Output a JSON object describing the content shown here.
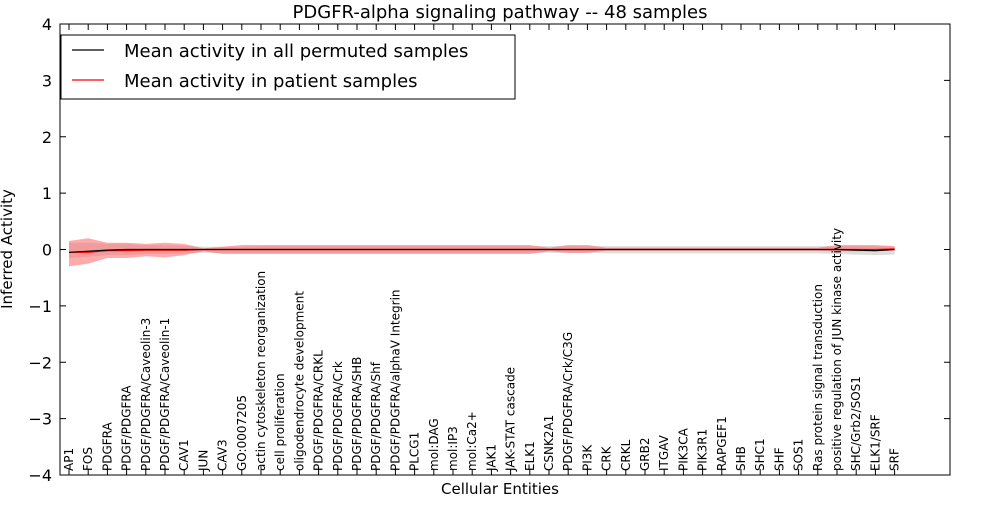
{
  "chart_data": {
    "type": "line",
    "title": "PDGFR-alpha signaling pathway -- 48 samples",
    "xlabel": "Cellular Entities",
    "ylabel": "Inferred Activity",
    "ylim": [
      -4,
      4
    ],
    "yticks": [
      -4,
      -3,
      -2,
      -1,
      0,
      1,
      2,
      3,
      4
    ],
    "ytick_labels": [
      "−4",
      "−3",
      "−2",
      "−1",
      "0",
      "1",
      "2",
      "3",
      "4"
    ],
    "grid": false,
    "legend_position": "top-left",
    "colors": {
      "permuted": "#000000",
      "permuted_band": "#bbbbbb",
      "patient": "#ff0000",
      "patient_band": "#ff6666"
    },
    "categories": [
      "AP1",
      "FOS",
      "PDGFRA",
      "PDGF/PDGFRA",
      "PDGF/PDGFRA/Caveolin-3",
      "PDGF/PDGFRA/Caveolin-1",
      "CAV1",
      "JUN",
      "CAV3",
      "GO:0007205",
      "actin cytoskeleton reorganization",
      "cell proliferation",
      "oligodendrocyte development",
      "PDGF/PDGFRA/CRKL",
      "PDGF/PDGFRA/Crk",
      "PDGF/PDGFRA/SHB",
      "PDGF/PDGFRA/Shf",
      "PDGF/PDGFRA/alphaV Integrin",
      "PLCG1",
      "mol:DAG",
      "mol:IP3",
      "mol:Ca2+",
      "JAK1",
      "JAK-STAT cascade",
      "ELK1",
      "CSNK2A1",
      "PDGF/PDGFRA/Crk/C3G",
      "PI3K",
      "CRK",
      "CRKL",
      "GRB2",
      "ITGAV",
      "PIK3CA",
      "PIK3R1",
      "RAPGEF1",
      "SHB",
      "SHC1",
      "SHF",
      "SOS1",
      "Ras protein signal transduction",
      "positive regulation of JUN kinase activity",
      "SHC/Grb2/SOS1",
      "ELK1/SRF",
      "SRF"
    ],
    "series": [
      {
        "name": "Mean activity in all permuted samples",
        "color": "#000000",
        "values": [
          -0.05,
          -0.03,
          -0.01,
          0,
          0,
          0,
          0,
          0,
          0,
          0,
          0,
          0,
          0,
          0,
          0,
          0,
          0,
          0,
          0,
          0,
          0,
          0,
          0,
          0,
          0,
          0,
          0,
          0,
          0,
          0,
          0,
          0,
          0,
          0,
          0,
          0,
          0,
          0,
          0,
          0,
          0,
          -0.01,
          -0.02,
          0
        ],
        "band_upper": [
          0.12,
          0.12,
          0.1,
          0.1,
          0.08,
          0.08,
          0.07,
          0.05,
          0.05,
          0.05,
          0.06,
          0.06,
          0.06,
          0.06,
          0.06,
          0.06,
          0.06,
          0.06,
          0.06,
          0.06,
          0.06,
          0.06,
          0.06,
          0.06,
          0.06,
          0.06,
          0.06,
          0.06,
          0.06,
          0.06,
          0.06,
          0.06,
          0.06,
          0.06,
          0.06,
          0.06,
          0.06,
          0.06,
          0.06,
          0.06,
          0.06,
          0.06,
          0.06,
          0.05
        ],
        "band_lower": [
          -0.15,
          -0.13,
          -0.1,
          -0.1,
          -0.08,
          -0.08,
          -0.07,
          -0.06,
          -0.06,
          -0.06,
          -0.06,
          -0.06,
          -0.06,
          -0.06,
          -0.06,
          -0.06,
          -0.06,
          -0.06,
          -0.06,
          -0.06,
          -0.06,
          -0.06,
          -0.06,
          -0.06,
          -0.06,
          -0.06,
          -0.06,
          -0.06,
          -0.07,
          -0.07,
          -0.07,
          -0.07,
          -0.07,
          -0.07,
          -0.07,
          -0.07,
          -0.07,
          -0.07,
          -0.07,
          -0.07,
          -0.08,
          -0.09,
          -0.1,
          -0.09
        ]
      },
      {
        "name": "Mean activity in patient samples",
        "color": "#ff0000",
        "values": [
          -0.05,
          -0.05,
          -0.02,
          -0.02,
          -0.01,
          -0.01,
          -0.01,
          0,
          0,
          0,
          0,
          0,
          0,
          0,
          0,
          0,
          0,
          0,
          0,
          0,
          0,
          0,
          0,
          0,
          0,
          0,
          0,
          0,
          0,
          0,
          0,
          0,
          0,
          0,
          0,
          0,
          0,
          0,
          0,
          0,
          0,
          0,
          0,
          0.01
        ],
        "band_upper": [
          0.15,
          0.2,
          0.12,
          0.12,
          0.1,
          0.12,
          0.1,
          0.02,
          0.05,
          0.08,
          0.08,
          0.08,
          0.08,
          0.08,
          0.08,
          0.08,
          0.08,
          0.08,
          0.08,
          0.08,
          0.08,
          0.08,
          0.08,
          0.08,
          0.08,
          0.03,
          0.08,
          0.08,
          0.03,
          0.03,
          0.03,
          0.03,
          0.03,
          0.03,
          0.03,
          0.03,
          0.03,
          0.03,
          0.03,
          0.03,
          0.08,
          0.08,
          0.08,
          0.06
        ],
        "band_lower": [
          -0.3,
          -0.25,
          -0.15,
          -0.15,
          -0.12,
          -0.14,
          -0.1,
          -0.03,
          -0.08,
          -0.08,
          -0.08,
          -0.08,
          -0.08,
          -0.08,
          -0.08,
          -0.08,
          -0.08,
          -0.08,
          -0.08,
          -0.08,
          -0.08,
          -0.08,
          -0.08,
          -0.08,
          -0.08,
          -0.03,
          -0.06,
          -0.06,
          -0.02,
          -0.02,
          -0.02,
          -0.02,
          -0.02,
          -0.02,
          -0.02,
          -0.02,
          -0.02,
          -0.02,
          -0.02,
          -0.02,
          -0.03,
          -0.03,
          -0.03,
          -0.02
        ]
      }
    ]
  }
}
